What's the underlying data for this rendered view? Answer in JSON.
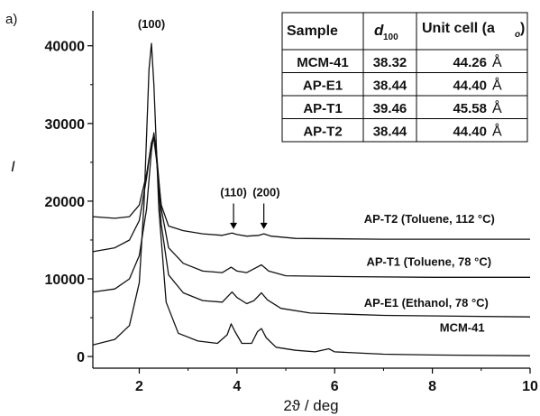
{
  "chart_data": {
    "type": "line",
    "panel_label": "a)",
    "xlabel": "2ϑ / deg",
    "ylabel": "I",
    "xlim": [
      1.05,
      10
    ],
    "ylim": [
      -1500,
      44500
    ],
    "x_ticks": [
      2,
      4,
      6,
      8,
      10
    ],
    "x_tick_labels": [
      "2",
      "4",
      "6",
      "8",
      "10"
    ],
    "y_ticks": [
      0,
      10000,
      20000,
      30000,
      40000
    ],
    "y_tick_labels": [
      "0",
      "10000",
      "20000",
      "30000",
      "40000"
    ],
    "grid": false,
    "series": [
      {
        "name": "MCM-41",
        "label_x": 8.15,
        "label_y": 3200,
        "points": [
          [
            1.05,
            1500
          ],
          [
            1.5,
            2200
          ],
          [
            1.8,
            4000
          ],
          [
            2.0,
            9500
          ],
          [
            2.1,
            20000
          ],
          [
            2.2,
            37000
          ],
          [
            2.25,
            40300
          ],
          [
            2.3,
            35000
          ],
          [
            2.4,
            19000
          ],
          [
            2.55,
            7000
          ],
          [
            2.8,
            3000
          ],
          [
            3.2,
            2000
          ],
          [
            3.6,
            1700
          ],
          [
            3.8,
            2800
          ],
          [
            3.88,
            4200
          ],
          [
            3.96,
            3200
          ],
          [
            4.1,
            1700
          ],
          [
            4.3,
            1700
          ],
          [
            4.42,
            3200
          ],
          [
            4.5,
            3600
          ],
          [
            4.6,
            2400
          ],
          [
            4.8,
            1200
          ],
          [
            5.2,
            800
          ],
          [
            5.6,
            600
          ],
          [
            5.88,
            1000
          ],
          [
            6.0,
            600
          ],
          [
            7.0,
            300
          ],
          [
            8.0,
            200
          ],
          [
            10,
            100
          ]
        ]
      },
      {
        "name": "AP-E1 (Ethanol, 78 °C)",
        "label_x": 6.6,
        "label_y": 6400,
        "points": [
          [
            1.05,
            8300
          ],
          [
            1.5,
            8700
          ],
          [
            1.8,
            10000
          ],
          [
            2.0,
            13000
          ],
          [
            2.15,
            19000
          ],
          [
            2.25,
            26500
          ],
          [
            2.3,
            28800
          ],
          [
            2.35,
            26000
          ],
          [
            2.45,
            17000
          ],
          [
            2.6,
            10500
          ],
          [
            2.9,
            8200
          ],
          [
            3.3,
            7200
          ],
          [
            3.7,
            7000
          ],
          [
            3.9,
            8300
          ],
          [
            4.0,
            7600
          ],
          [
            4.2,
            6800
          ],
          [
            4.35,
            7200
          ],
          [
            4.5,
            8200
          ],
          [
            4.62,
            7300
          ],
          [
            4.9,
            6200
          ],
          [
            5.5,
            5600
          ],
          [
            7,
            5300
          ],
          [
            10,
            5100
          ]
        ]
      },
      {
        "name": "AP-T1 (Toluene, 78 °C)",
        "label_x": 6.65,
        "label_y": 11700,
        "points": [
          [
            1.05,
            13500
          ],
          [
            1.5,
            14000
          ],
          [
            1.8,
            15000
          ],
          [
            2.0,
            17500
          ],
          [
            2.15,
            23000
          ],
          [
            2.25,
            27500
          ],
          [
            2.3,
            28500
          ],
          [
            2.35,
            26500
          ],
          [
            2.45,
            19000
          ],
          [
            2.6,
            14000
          ],
          [
            2.9,
            12000
          ],
          [
            3.3,
            11000
          ],
          [
            3.7,
            10800
          ],
          [
            3.88,
            11500
          ],
          [
            4.0,
            11000
          ],
          [
            4.2,
            10800
          ],
          [
            4.38,
            11400
          ],
          [
            4.5,
            11800
          ],
          [
            4.65,
            11000
          ],
          [
            5.0,
            10400
          ],
          [
            6,
            10300
          ],
          [
            8,
            10200
          ],
          [
            10,
            10200
          ]
        ]
      },
      {
        "name": "AP-T2 (Toluene, 112 °C)",
        "label_x": 6.6,
        "label_y": 17200,
        "points": [
          [
            1.05,
            18000
          ],
          [
            1.5,
            17800
          ],
          [
            1.8,
            18000
          ],
          [
            2.0,
            19500
          ],
          [
            2.15,
            23500
          ],
          [
            2.25,
            27500
          ],
          [
            2.3,
            28000
          ],
          [
            2.35,
            25500
          ],
          [
            2.45,
            19500
          ],
          [
            2.6,
            16800
          ],
          [
            2.9,
            16200
          ],
          [
            3.3,
            15800
          ],
          [
            3.7,
            15600
          ],
          [
            3.9,
            15900
          ],
          [
            4.0,
            15700
          ],
          [
            4.2,
            15500
          ],
          [
            4.45,
            15600
          ],
          [
            4.55,
            15800
          ],
          [
            4.7,
            15500
          ],
          [
            5.2,
            15200
          ],
          [
            7,
            15100
          ],
          [
            10,
            15100
          ]
        ]
      }
    ],
    "annotations": [
      {
        "id": "peak-100",
        "text": "(100)",
        "x": 2.25,
        "y": 42300
      },
      {
        "id": "peak-110",
        "text": "(110)",
        "x": 3.93,
        "y": 20600
      },
      {
        "id": "peak-200",
        "text": "(200)",
        "x": 4.6,
        "y": 20600
      }
    ],
    "arrows": [
      {
        "id": "arrow-110",
        "x": 3.93,
        "y_from": 19700,
        "y_to": 16400
      },
      {
        "id": "arrow-200",
        "x": 4.55,
        "y_from": 19700,
        "y_to": 16400
      }
    ],
    "table": {
      "headers": [
        "Sample",
        "d",
        "100",
        "Unit cell (a",
        "o",
        ")"
      ],
      "unit": "Å",
      "rows": [
        {
          "sample": "MCM-41",
          "d100": "38.32",
          "unit_cell": "44.26"
        },
        {
          "sample": "AP-E1",
          "d100": "38.44",
          "unit_cell": "44.40"
        },
        {
          "sample": "AP-T1",
          "d100": "39.46",
          "unit_cell": "45.58"
        },
        {
          "sample": "AP-T2",
          "d100": "38.44",
          "unit_cell": "44.40"
        }
      ]
    }
  }
}
